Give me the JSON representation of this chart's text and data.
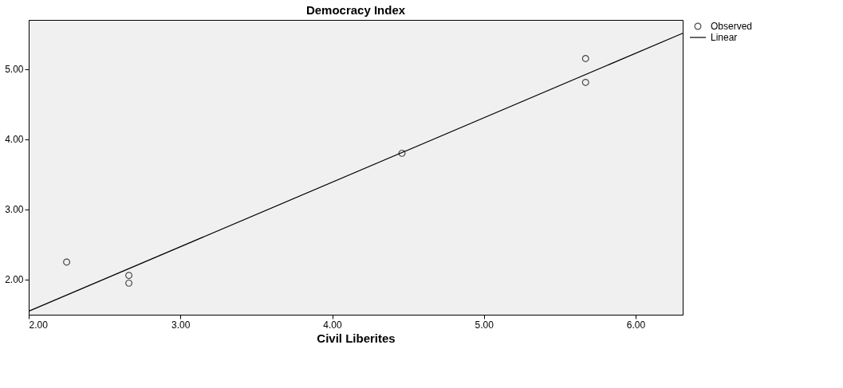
{
  "chart_data": {
    "type": "scatter",
    "title": "Democracy Index",
    "xlabel": "Civil Liberites",
    "xlim": [
      2.0,
      6.31
    ],
    "ylim": [
      1.5,
      5.7
    ],
    "xticks": [
      {
        "value": 2,
        "label": "2.00"
      },
      {
        "value": 3,
        "label": "3.00"
      },
      {
        "value": 4,
        "label": "4.00"
      },
      {
        "value": 5,
        "label": "5.00"
      },
      {
        "value": 6,
        "label": "6.00"
      }
    ],
    "yticks": [
      {
        "value": 2,
        "label": "2.00"
      },
      {
        "value": 3,
        "label": "3.00"
      },
      {
        "value": 4,
        "label": "4.00"
      },
      {
        "value": 5,
        "label": "5.00"
      }
    ],
    "grid": false,
    "legend": "top right",
    "series": [
      {
        "name": "Observed",
        "marker": "circle",
        "color": "#000000",
        "x": [
          2.25,
          2.66,
          2.66,
          4.46,
          5.67,
          5.67
        ],
        "values": [
          2.25,
          2.06,
          1.95,
          3.8,
          5.15,
          4.81
        ]
      },
      {
        "name": "Linear",
        "type": "line",
        "line_style": "solid",
        "color": "#000000",
        "x": [
          2.0,
          6.31
        ],
        "values": [
          1.55,
          5.51
        ]
      }
    ]
  }
}
